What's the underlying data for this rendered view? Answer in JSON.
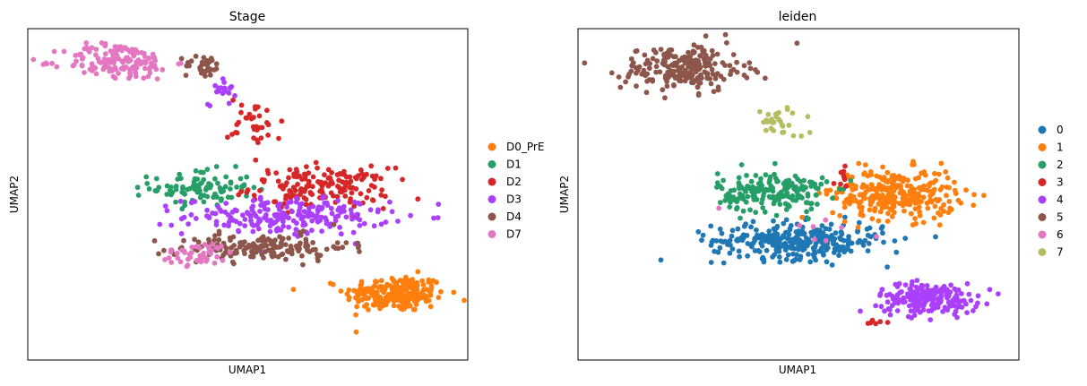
{
  "chart_data": [
    {
      "type": "scatter",
      "title": "Stage",
      "xlabel": "UMAP1",
      "ylabel": "UMAP2",
      "xlim": [
        -6,
        11
      ],
      "ylim": [
        -4,
        11
      ],
      "grid": false,
      "legend": "right",
      "series": [
        {
          "name": "D0_PrE",
          "color": "#ff7f0e",
          "clusters": [
            {
              "cx": 8.2,
              "cy": -1.0,
              "sx": 1.3,
              "sy": 0.55,
              "n": 230
            }
          ]
        },
        {
          "name": "D1",
          "color": "#279e68",
          "clusters": [
            {
              "cx": 0.7,
              "cy": 3.8,
              "sx": 1.3,
              "sy": 0.55,
              "n": 95
            }
          ]
        },
        {
          "name": "D2",
          "color": "#d62728",
          "clusters": [
            {
              "cx": 5.3,
              "cy": 3.8,
              "sx": 1.8,
              "sy": 0.6,
              "n": 170
            },
            {
              "cx": 2.8,
              "cy": 6.7,
              "sx": 0.7,
              "sy": 0.8,
              "n": 35
            }
          ]
        },
        {
          "name": "D3",
          "color": "#aa40fc",
          "clusters": [
            {
              "cx": 4.0,
              "cy": 2.5,
              "sx": 2.6,
              "sy": 0.55,
              "n": 210
            },
            {
              "cx": 1.5,
              "cy": 8.3,
              "sx": 0.35,
              "sy": 0.5,
              "n": 20
            }
          ]
        },
        {
          "name": "D4",
          "color": "#8c564b",
          "clusters": [
            {
              "cx": 3.1,
              "cy": 1.1,
              "sx": 2.2,
              "sy": 0.4,
              "n": 160
            },
            {
              "cx": 0.8,
              "cy": 9.3,
              "sx": 0.5,
              "sy": 0.35,
              "n": 35
            }
          ]
        },
        {
          "name": "D7",
          "color": "#e377c2",
          "clusters": [
            {
              "cx": -2.5,
              "cy": 9.5,
              "sx": 1.4,
              "sy": 0.55,
              "n": 150
            },
            {
              "cx": 0.6,
              "cy": 0.8,
              "sx": 1.0,
              "sy": 0.35,
              "n": 45
            }
          ]
        }
      ]
    },
    {
      "type": "scatter",
      "title": "leiden",
      "xlabel": "UMAP1",
      "ylabel": "UMAP2",
      "xlim": [
        -6,
        11
      ],
      "ylim": [
        -4,
        11
      ],
      "grid": false,
      "legend": "right",
      "series": [
        {
          "name": "0",
          "color": "#1f77b4",
          "clusters": [
            {
              "cx": 2.5,
              "cy": 1.4,
              "sx": 2.2,
              "sy": 0.55,
              "n": 320
            }
          ]
        },
        {
          "name": "1",
          "color": "#ff7f0e",
          "clusters": [
            {
              "cx": 6.2,
              "cy": 3.5,
              "sx": 1.6,
              "sy": 0.75,
              "n": 300
            }
          ]
        },
        {
          "name": "2",
          "color": "#279e68",
          "clusters": [
            {
              "cx": 1.5,
              "cy": 3.6,
              "sx": 1.4,
              "sy": 0.6,
              "n": 190
            }
          ]
        },
        {
          "name": "3",
          "color": "#d62728",
          "clusters": [
            {
              "cx": 4.3,
              "cy": 4.3,
              "sx": 0.25,
              "sy": 0.5,
              "n": 8
            },
            {
              "cx": 5.6,
              "cy": -2.3,
              "sx": 0.35,
              "sy": 0.15,
              "n": 6
            }
          ]
        },
        {
          "name": "4",
          "color": "#aa40fc",
          "clusters": [
            {
              "cx": 7.5,
              "cy": -1.2,
              "sx": 1.3,
              "sy": 0.45,
              "n": 200
            }
          ]
        },
        {
          "name": "5",
          "color": "#8c564b",
          "clusters": [
            {
              "cx": -1.9,
              "cy": 9.2,
              "sx": 1.6,
              "sy": 0.7,
              "n": 220
            }
          ]
        },
        {
          "name": "6",
          "color": "#e377c2",
          "clusters": [
            {
              "cx": 3.5,
              "cy": 1.8,
              "sx": 2.5,
              "sy": 0.9,
              "n": 8
            }
          ]
        },
        {
          "name": "7",
          "color": "#b5bd61",
          "clusters": [
            {
              "cx": 1.8,
              "cy": 6.8,
              "sx": 0.6,
              "sy": 0.5,
              "n": 30
            }
          ]
        }
      ]
    }
  ]
}
